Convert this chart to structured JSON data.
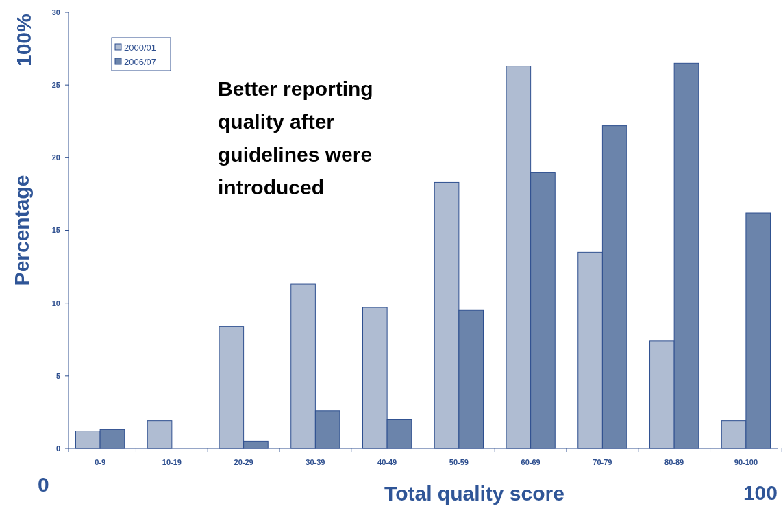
{
  "chart_data": {
    "type": "bar",
    "xlabel": "Total quality score",
    "ylabel": "Percentage",
    "categories": [
      "0-9",
      "10-19",
      "20-29",
      "30-39",
      "40-49",
      "50-59",
      "60-69",
      "70-79",
      "80-89",
      "90-100"
    ],
    "series": [
      {
        "name": "2000/01",
        "color": "#afbcd2",
        "values": [
          1.2,
          1.9,
          8.4,
          11.3,
          9.7,
          18.3,
          26.3,
          13.5,
          7.4,
          1.9
        ]
      },
      {
        "name": "2006/07",
        "color": "#6b84ab",
        "values": [
          1.3,
          0,
          0.5,
          2.6,
          2.0,
          9.5,
          19.0,
          22.2,
          26.5,
          16.2
        ]
      }
    ],
    "ylim": [
      0,
      30
    ],
    "yticks": [
      0,
      5,
      10,
      15,
      20,
      25,
      30
    ],
    "grid": false,
    "legend": "top left",
    "annotations": [
      "Better reporting quality after guidelines were introduced",
      "100%",
      "0",
      "100"
    ]
  }
}
